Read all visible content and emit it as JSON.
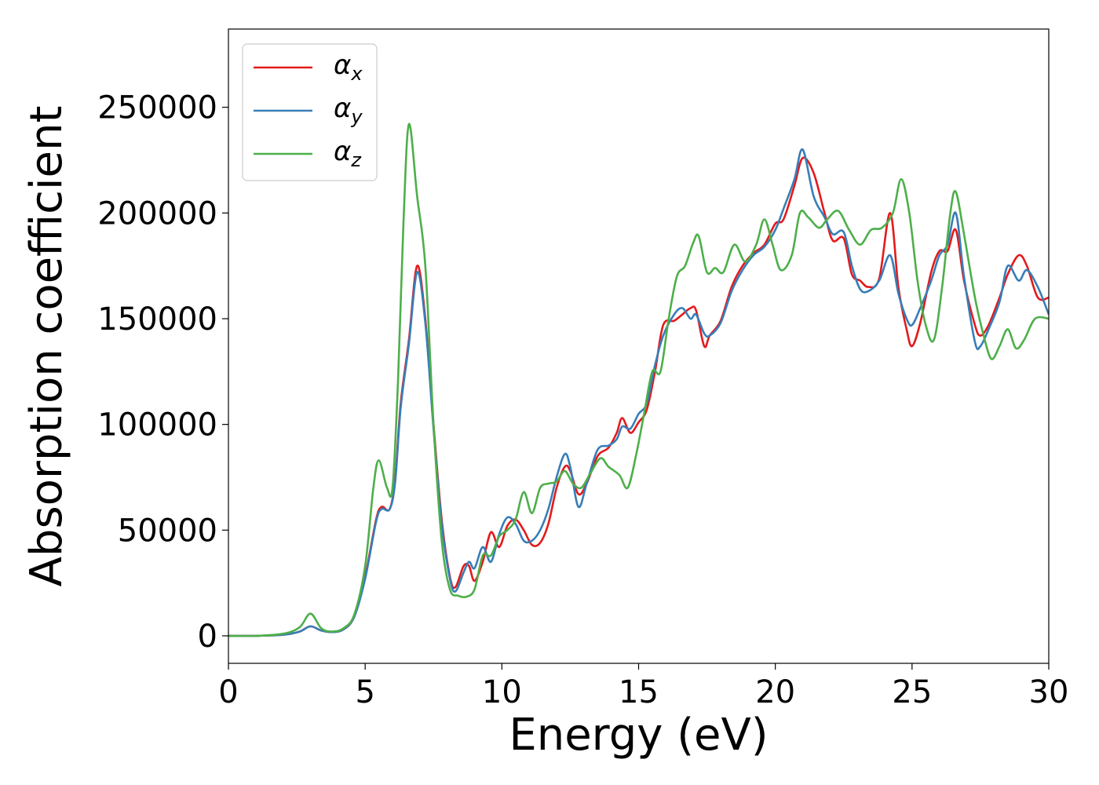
{
  "chart_data": {
    "type": "line",
    "title": "",
    "xlabel": "Energy (eV)",
    "ylabel": "Absorption coefficient",
    "xlim": [
      0,
      30
    ],
    "ylim": [
      -13000,
      287000
    ],
    "xticks": [
      0,
      5,
      10,
      15,
      20,
      25,
      30
    ],
    "yticks": [
      0,
      50000,
      100000,
      150000,
      200000,
      250000
    ],
    "grid": false,
    "legend_position": "top-left",
    "series": [
      {
        "name": "α",
        "subscript": "x",
        "color": "#e41a1c",
        "points": [
          [
            0,
            0
          ],
          [
            1,
            0
          ],
          [
            2,
            500
          ],
          [
            2.6,
            2000
          ],
          [
            3,
            4500
          ],
          [
            3.4,
            2500
          ],
          [
            3.8,
            1800
          ],
          [
            4.2,
            3000
          ],
          [
            4.6,
            9000
          ],
          [
            5.0,
            28000
          ],
          [
            5.4,
            55000
          ],
          [
            5.6,
            61000
          ],
          [
            5.9,
            60000
          ],
          [
            6.1,
            75000
          ],
          [
            6.3,
            110000
          ],
          [
            6.6,
            140000
          ],
          [
            6.9,
            175000
          ],
          [
            7.2,
            150000
          ],
          [
            7.5,
            100000
          ],
          [
            7.8,
            55000
          ],
          [
            8.1,
            28000
          ],
          [
            8.3,
            23000
          ],
          [
            8.6,
            33000
          ],
          [
            8.8,
            33000
          ],
          [
            9.0,
            26000
          ],
          [
            9.3,
            35000
          ],
          [
            9.6,
            49000
          ],
          [
            9.9,
            42000
          ],
          [
            10.2,
            52000
          ],
          [
            10.5,
            55000
          ],
          [
            10.8,
            50000
          ],
          [
            11.1,
            43000
          ],
          [
            11.4,
            44000
          ],
          [
            11.7,
            53000
          ],
          [
            12.0,
            70000
          ],
          [
            12.3,
            80000
          ],
          [
            12.5,
            78000
          ],
          [
            12.8,
            67000
          ],
          [
            13.1,
            72000
          ],
          [
            13.5,
            85000
          ],
          [
            13.9,
            89000
          ],
          [
            14.2,
            96000
          ],
          [
            14.4,
            103000
          ],
          [
            14.7,
            96000
          ],
          [
            15.0,
            101000
          ],
          [
            15.3,
            107000
          ],
          [
            15.6,
            125000
          ],
          [
            15.9,
            147000
          ],
          [
            16.3,
            149000
          ],
          [
            16.6,
            152000
          ],
          [
            16.9,
            155000
          ],
          [
            17.1,
            154000
          ],
          [
            17.4,
            137000
          ],
          [
            17.6,
            142000
          ],
          [
            18.0,
            149000
          ],
          [
            18.4,
            165000
          ],
          [
            18.8,
            175000
          ],
          [
            19.2,
            181000
          ],
          [
            19.6,
            185000
          ],
          [
            20.0,
            195000
          ],
          [
            20.3,
            197000
          ],
          [
            20.7,
            213000
          ],
          [
            21.0,
            226000
          ],
          [
            21.4,
            219000
          ],
          [
            21.8,
            200000
          ],
          [
            22.1,
            187000
          ],
          [
            22.5,
            188000
          ],
          [
            22.8,
            171000
          ],
          [
            23.1,
            168000
          ],
          [
            23.4,
            165000
          ],
          [
            23.8,
            169000
          ],
          [
            24.2,
            200000
          ],
          [
            24.5,
            165000
          ],
          [
            24.8,
            145000
          ],
          [
            25.0,
            137000
          ],
          [
            25.3,
            148000
          ],
          [
            25.7,
            172000
          ],
          [
            26.0,
            182000
          ],
          [
            26.3,
            182000
          ],
          [
            26.6,
            192000
          ],
          [
            26.9,
            168000
          ],
          [
            27.3,
            147000
          ],
          [
            27.5,
            142000
          ],
          [
            27.8,
            147000
          ],
          [
            28.2,
            160000
          ],
          [
            28.5,
            171000
          ],
          [
            28.9,
            180000
          ],
          [
            29.2,
            175000
          ],
          [
            29.6,
            160000
          ],
          [
            30.0,
            160000
          ]
        ]
      },
      {
        "name": "α",
        "subscript": "y",
        "color": "#377eb8",
        "points": [
          [
            0,
            0
          ],
          [
            1,
            0
          ],
          [
            2,
            500
          ],
          [
            2.6,
            2000
          ],
          [
            3,
            4500
          ],
          [
            3.4,
            2500
          ],
          [
            3.8,
            1800
          ],
          [
            4.2,
            3000
          ],
          [
            4.6,
            9000
          ],
          [
            5.0,
            27000
          ],
          [
            5.4,
            54000
          ],
          [
            5.6,
            60000
          ],
          [
            5.9,
            60000
          ],
          [
            6.1,
            73000
          ],
          [
            6.3,
            108000
          ],
          [
            6.6,
            138000
          ],
          [
            6.9,
            172000
          ],
          [
            7.2,
            148000
          ],
          [
            7.5,
            98000
          ],
          [
            7.8,
            53000
          ],
          [
            8.1,
            27000
          ],
          [
            8.3,
            21000
          ],
          [
            8.6,
            30000
          ],
          [
            8.8,
            35000
          ],
          [
            9.0,
            32000
          ],
          [
            9.3,
            42000
          ],
          [
            9.6,
            35000
          ],
          [
            9.9,
            48000
          ],
          [
            10.2,
            56000
          ],
          [
            10.5,
            53000
          ],
          [
            10.8,
            45000
          ],
          [
            11.1,
            45000
          ],
          [
            11.4,
            50000
          ],
          [
            11.7,
            60000
          ],
          [
            12.0,
            75000
          ],
          [
            12.3,
            86000
          ],
          [
            12.5,
            80000
          ],
          [
            12.8,
            61000
          ],
          [
            13.1,
            72000
          ],
          [
            13.5,
            88000
          ],
          [
            13.9,
            90000
          ],
          [
            14.2,
            93000
          ],
          [
            14.4,
            99000
          ],
          [
            14.7,
            98000
          ],
          [
            15.0,
            105000
          ],
          [
            15.3,
            110000
          ],
          [
            15.6,
            128000
          ],
          [
            15.9,
            142000
          ],
          [
            16.3,
            152000
          ],
          [
            16.6,
            155000
          ],
          [
            16.9,
            150000
          ],
          [
            17.1,
            152000
          ],
          [
            17.4,
            143000
          ],
          [
            17.6,
            142000
          ],
          [
            18.0,
            148000
          ],
          [
            18.4,
            163000
          ],
          [
            18.8,
            173000
          ],
          [
            19.2,
            180000
          ],
          [
            19.6,
            184000
          ],
          [
            20.0,
            192000
          ],
          [
            20.3,
            202000
          ],
          [
            20.7,
            216000
          ],
          [
            21.0,
            230000
          ],
          [
            21.4,
            208000
          ],
          [
            21.8,
            198000
          ],
          [
            22.1,
            190000
          ],
          [
            22.5,
            191000
          ],
          [
            22.8,
            175000
          ],
          [
            23.1,
            164000
          ],
          [
            23.4,
            163000
          ],
          [
            23.8,
            168000
          ],
          [
            24.2,
            180000
          ],
          [
            24.5,
            162000
          ],
          [
            24.8,
            150000
          ],
          [
            25.0,
            147000
          ],
          [
            25.3,
            155000
          ],
          [
            25.7,
            168000
          ],
          [
            26.0,
            180000
          ],
          [
            26.3,
            185000
          ],
          [
            26.6,
            200000
          ],
          [
            26.9,
            170000
          ],
          [
            27.3,
            139000
          ],
          [
            27.5,
            137000
          ],
          [
            27.8,
            145000
          ],
          [
            28.2,
            158000
          ],
          [
            28.5,
            175000
          ],
          [
            28.9,
            168000
          ],
          [
            29.2,
            173000
          ],
          [
            29.6,
            165000
          ],
          [
            30.0,
            152000
          ]
        ]
      },
      {
        "name": "α",
        "subscript": "z",
        "color": "#4daf4a",
        "points": [
          [
            0,
            0
          ],
          [
            1,
            0
          ],
          [
            2,
            1000
          ],
          [
            2.6,
            4000
          ],
          [
            3,
            10500
          ],
          [
            3.4,
            3500
          ],
          [
            3.8,
            2000
          ],
          [
            4.2,
            3500
          ],
          [
            4.6,
            10000
          ],
          [
            5.0,
            33000
          ],
          [
            5.3,
            70000
          ],
          [
            5.5,
            83000
          ],
          [
            5.8,
            70000
          ],
          [
            6.0,
            70000
          ],
          [
            6.2,
            120000
          ],
          [
            6.4,
            195000
          ],
          [
            6.6,
            242000
          ],
          [
            6.9,
            208000
          ],
          [
            7.2,
            175000
          ],
          [
            7.5,
            100000
          ],
          [
            7.8,
            45000
          ],
          [
            8.1,
            22000
          ],
          [
            8.4,
            19000
          ],
          [
            8.7,
            18500
          ],
          [
            9.0,
            22000
          ],
          [
            9.3,
            38000
          ],
          [
            9.6,
            38000
          ],
          [
            9.9,
            47000
          ],
          [
            10.2,
            50000
          ],
          [
            10.5,
            55000
          ],
          [
            10.8,
            68000
          ],
          [
            11.1,
            58000
          ],
          [
            11.4,
            70000
          ],
          [
            11.7,
            72000
          ],
          [
            12.0,
            73000
          ],
          [
            12.3,
            78000
          ],
          [
            12.6,
            72000
          ],
          [
            12.9,
            70000
          ],
          [
            13.2,
            76000
          ],
          [
            13.6,
            84000
          ],
          [
            13.9,
            80000
          ],
          [
            14.3,
            76000
          ],
          [
            14.6,
            70000
          ],
          [
            14.9,
            85000
          ],
          [
            15.2,
            105000
          ],
          [
            15.5,
            125000
          ],
          [
            15.8,
            125000
          ],
          [
            16.1,
            150000
          ],
          [
            16.4,
            170000
          ],
          [
            16.7,
            175000
          ],
          [
            17.0,
            186000
          ],
          [
            17.2,
            189000
          ],
          [
            17.5,
            172000
          ],
          [
            17.8,
            174000
          ],
          [
            18.1,
            172000
          ],
          [
            18.5,
            185000
          ],
          [
            18.9,
            177000
          ],
          [
            19.3,
            185000
          ],
          [
            19.6,
            197000
          ],
          [
            19.9,
            185000
          ],
          [
            20.2,
            173000
          ],
          [
            20.6,
            180000
          ],
          [
            20.9,
            200000
          ],
          [
            21.2,
            198000
          ],
          [
            21.6,
            193000
          ],
          [
            21.9,
            197000
          ],
          [
            22.3,
            201000
          ],
          [
            22.7,
            192000
          ],
          [
            23.1,
            185000
          ],
          [
            23.5,
            192000
          ],
          [
            23.9,
            193000
          ],
          [
            24.3,
            200000
          ],
          [
            24.6,
            216000
          ],
          [
            24.9,
            200000
          ],
          [
            25.2,
            168000
          ],
          [
            25.5,
            147000
          ],
          [
            25.8,
            140000
          ],
          [
            26.1,
            165000
          ],
          [
            26.4,
            200000
          ],
          [
            26.6,
            210000
          ],
          [
            26.9,
            190000
          ],
          [
            27.3,
            160000
          ],
          [
            27.6,
            143000
          ],
          [
            27.9,
            131000
          ],
          [
            28.2,
            137000
          ],
          [
            28.5,
            145000
          ],
          [
            28.8,
            136000
          ],
          [
            29.1,
            140000
          ],
          [
            29.5,
            150000
          ],
          [
            30.0,
            150000
          ]
        ]
      }
    ]
  }
}
